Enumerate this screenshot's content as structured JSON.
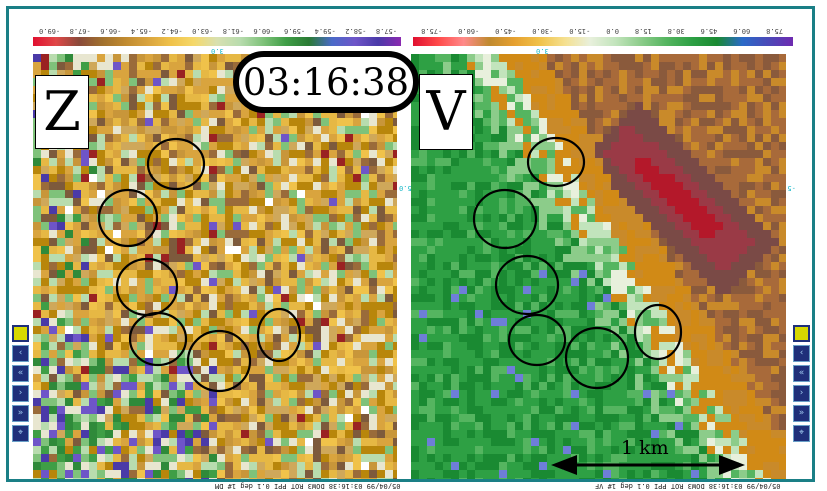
{
  "clock": {
    "time": "03:16:38"
  },
  "panels": {
    "left": {
      "letter": "Z",
      "colorbar_labels": [
        "-57.8",
        "-58.2",
        "-59.4",
        "-59.6",
        "-60.6",
        "-61.8",
        "-63.0",
        "-64.2",
        "-65.4",
        "-66.6",
        "-67.8",
        "-69.0"
      ],
      "center_tick": "3.0",
      "side_tick": "",
      "footer": "05/04/99 03:16:38 DOW3 ROT PPI 0.1 deg 1# DM"
    },
    "right": {
      "letter": "V",
      "colorbar_labels": [
        "75.8",
        "60.6",
        "45.6",
        "30.8",
        "15.8",
        "0.0",
        "-15.0",
        "-30.0",
        "-45.0",
        "-60.0",
        "-75.8"
      ],
      "center_tick": "3.0",
      "side_tick": "-5.0",
      "left_side_tick": "-5.0",
      "footer": "05/04/99 03:16:38 DOW3 ROT PPI 0.1 deg 1# VF"
    }
  },
  "scalebar": {
    "label": "1 km"
  },
  "tools": {
    "icons": [
      "active-square-icon",
      "left-icon",
      "left-double-icon",
      "right-icon",
      "right-double-icon",
      "zoom-icon"
    ]
  },
  "colors": {
    "frame": "#1a7f86",
    "z_palette": [
      "#b8860b",
      "#c8963a",
      "#d9a43e",
      "#e6b844",
      "#f0c24a",
      "#cfa85a",
      "#9a6b3a",
      "#7d5a3c",
      "#3f9e46",
      "#2f8a3a",
      "#7fc27a",
      "#b8dcae",
      "#e8e6d0",
      "#6e55c8",
      "#4a3aa8",
      "#ffffff",
      "#9a2222"
    ],
    "v_palette": [
      "#d18a16",
      "#c98a2a",
      "#a86a3a",
      "#8a5a3c",
      "#7a4a46",
      "#9a3a46",
      "#b4182a",
      "#1a8a32",
      "#2ea044",
      "#55b560",
      "#8ccc8a",
      "#c2e4bc",
      "#e8f0dc",
      "#6e7ed8"
    ]
  }
}
